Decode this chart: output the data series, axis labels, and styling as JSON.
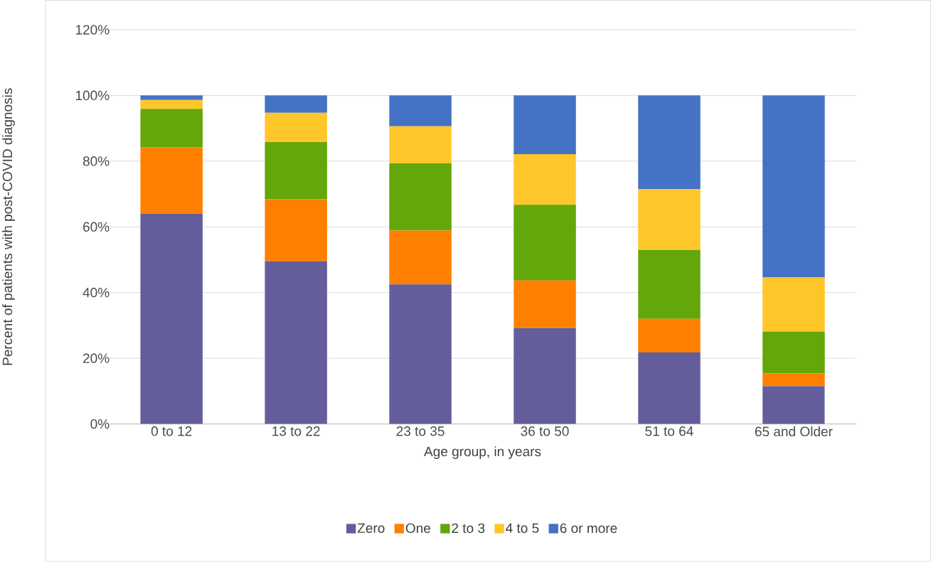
{
  "chart_data": {
    "type": "bar",
    "stacked": true,
    "xlabel": "Age group, in years",
    "ylabel": "Percent of patients with post-COVID diagnosis",
    "categories": [
      "0 to 12",
      "13 to 22",
      "23 to 35",
      "36 to 50",
      "51 to 64",
      "65 and Older"
    ],
    "series": [
      {
        "name": "Zero",
        "color": "#635e9b",
        "values": [
          64.0,
          49.5,
          42.5,
          29.2,
          21.8,
          11.5
        ]
      },
      {
        "name": "One",
        "color": "#ff8000",
        "values": [
          20.2,
          18.9,
          16.4,
          14.5,
          10.2,
          3.9
        ]
      },
      {
        "name": "2 to 3",
        "color": "#63a70a",
        "values": [
          11.7,
          17.4,
          20.4,
          23.0,
          21.0,
          12.7
        ]
      },
      {
        "name": "4 to 5",
        "color": "#ffc62a",
        "values": [
          2.7,
          8.9,
          11.3,
          15.4,
          18.5,
          16.5
        ]
      },
      {
        "name": "6 or more",
        "color": "#4472c4",
        "values": [
          1.4,
          5.3,
          9.4,
          17.9,
          28.5,
          55.4
        ]
      }
    ],
    "ylim": [
      0,
      120
    ],
    "yticks": [
      {
        "value": 0,
        "label": "0%"
      },
      {
        "value": 20,
        "label": "20%"
      },
      {
        "value": 40,
        "label": "40%"
      },
      {
        "value": 60,
        "label": "60%"
      },
      {
        "value": 80,
        "label": "80%"
      },
      {
        "value": 100,
        "label": "100%"
      },
      {
        "value": 120,
        "label": "120%"
      }
    ],
    "grid": "y",
    "legend": "bottom"
  }
}
